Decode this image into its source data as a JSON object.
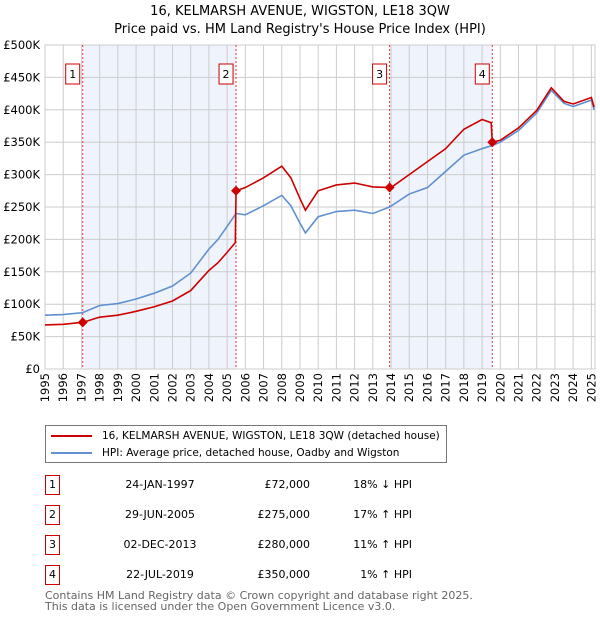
{
  "chart_data": {
    "type": "line",
    "title": "16, KELMARSH AVENUE, WIGSTON, LE18 3QW",
    "subtitle": "Price paid vs. HM Land Registry's House Price Index (HPI)",
    "xlim": [
      1995,
      2025.2
    ],
    "ylim": [
      0,
      500000
    ],
    "x_ticks": [
      "1995",
      "1996",
      "1997",
      "1998",
      "1999",
      "2000",
      "2001",
      "2002",
      "2003",
      "2004",
      "2005",
      "2006",
      "2007",
      "2008",
      "2009",
      "2010",
      "2011",
      "2012",
      "2013",
      "2014",
      "2015",
      "2016",
      "2017",
      "2018",
      "2019",
      "2020",
      "2021",
      "2022",
      "2023",
      "2024",
      "2025"
    ],
    "y_ticks": [
      {
        "v": 0,
        "label": "£0"
      },
      {
        "v": 50000,
        "label": "£50K"
      },
      {
        "v": 100000,
        "label": "£100K"
      },
      {
        "v": 150000,
        "label": "£150K"
      },
      {
        "v": 200000,
        "label": "£200K"
      },
      {
        "v": 250000,
        "label": "£250K"
      },
      {
        "v": 300000,
        "label": "£300K"
      },
      {
        "v": 350000,
        "label": "£350K"
      },
      {
        "v": 400000,
        "label": "£400K"
      },
      {
        "v": 450000,
        "label": "£450K"
      },
      {
        "v": 500000,
        "label": "£500K"
      }
    ],
    "grid": true,
    "shaded_ranges": [
      [
        1997.07,
        2005.49
      ],
      [
        2013.92,
        2019.56
      ]
    ],
    "series": [
      {
        "name": "16, KELMARSH AVENUE, WIGSTON, LE18 3QW (detached house)",
        "color": "#cc0000",
        "x": [
          1995,
          1996,
          1997.07,
          1998,
          1999,
          2000,
          2001,
          2002,
          2003,
          2004,
          2004.5,
          2005,
          2005.45,
          2005.49,
          2006,
          2007,
          2008,
          2008.5,
          2009,
          2009.3,
          2010,
          2011,
          2012,
          2013,
          2013.92,
          2014,
          2015,
          2016,
          2017,
          2018,
          2019,
          2019.5,
          2019.56,
          2020,
          2021,
          2022,
          2022.8,
          2023.5,
          2024,
          2025,
          2025.15
        ],
        "y": [
          68000,
          69000,
          72000,
          80000,
          83000,
          89000,
          96000,
          105000,
          121000,
          152000,
          164000,
          180000,
          195000,
          275000,
          280000,
          295000,
          313000,
          295000,
          263000,
          245000,
          275000,
          284000,
          287000,
          281000,
          280000,
          280000,
          300000,
          320000,
          340000,
          370000,
          385000,
          380000,
          350000,
          353000,
          372000,
          399000,
          434000,
          413000,
          409000,
          419000,
          404000
        ]
      },
      {
        "name": "HPI: Average price, detached house, Oadby and Wigston",
        "color": "#6090d0",
        "x": [
          1995,
          1996,
          1997.07,
          1998,
          1999,
          2000,
          2001,
          2002,
          2003,
          2004,
          2004.5,
          2005,
          2005.49,
          2006,
          2007,
          2008,
          2008.5,
          2009,
          2009.3,
          2010,
          2011,
          2012,
          2013,
          2013.92,
          2015,
          2016,
          2017,
          2018,
          2019,
          2019.56,
          2020,
          2021,
          2022,
          2022.8,
          2023.5,
          2024,
          2025,
          2025.15
        ],
        "y": [
          83000,
          84000,
          87000,
          98000,
          101000,
          108000,
          117000,
          128000,
          148000,
          185000,
          200000,
          220000,
          240000,
          238000,
          252000,
          268000,
          252000,
          225000,
          210000,
          235000,
          243000,
          245000,
          240000,
          250000,
          270000,
          280000,
          305000,
          330000,
          340000,
          345000,
          350000,
          368000,
          395000,
          430000,
          410000,
          405000,
          415000,
          400000
        ]
      }
    ],
    "sales": [
      {
        "n": "1",
        "x": 1997.07,
        "y": 72000,
        "date": "24-JAN-1997",
        "price": "£72,000",
        "hpi": "18% ↓ HPI"
      },
      {
        "n": "2",
        "x": 2005.49,
        "y": 275000,
        "date": "29-JUN-2005",
        "price": "£275,000",
        "hpi": "17% ↑ HPI"
      },
      {
        "n": "3",
        "x": 2013.92,
        "y": 280000,
        "date": "02-DEC-2013",
        "price": "£280,000",
        "hpi": "11% ↑ HPI"
      },
      {
        "n": "4",
        "x": 2019.56,
        "y": 350000,
        "date": "22-JUL-2019",
        "price": "£350,000",
        "hpi": "1% ↑ HPI"
      }
    ]
  },
  "footer": [
    "Contains HM Land Registry data © Crown copyright and database right 2025.",
    "This data is licensed under the Open Government Licence v3.0."
  ]
}
